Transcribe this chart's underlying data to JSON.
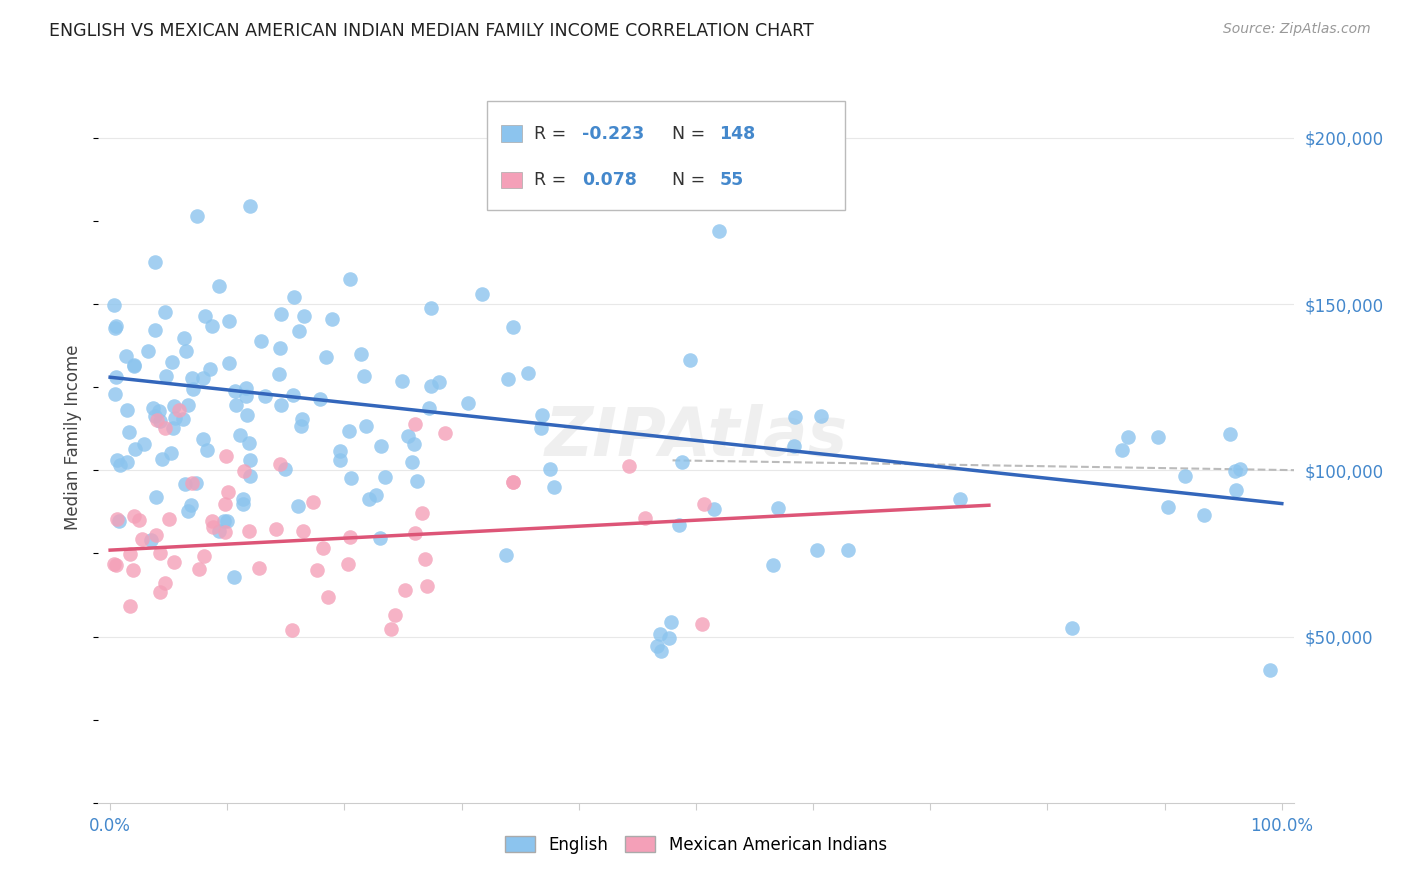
{
  "title": "ENGLISH VS MEXICAN AMERICAN INDIAN MEDIAN FAMILY INCOME CORRELATION CHART",
  "source": "Source: ZipAtlas.com",
  "ylabel": "Median Family Income",
  "ytick_labels": [
    "$50,000",
    "$100,000",
    "$150,000",
    "$200,000"
  ],
  "ytick_values": [
    50000,
    100000,
    150000,
    200000
  ],
  "ylim": [
    0,
    220000
  ],
  "watermark": "ZIPAtlas",
  "legend_english_R": "-0.223",
  "legend_english_N": "148",
  "legend_mexican_R": "0.078",
  "legend_mexican_N": "55",
  "color_english": "#8CC4EE",
  "color_mexican": "#F4A0B8",
  "color_blue_text": "#4488CC",
  "color_trendline_english": "#3366BB",
  "color_trendline_mexican": "#DD5577",
  "color_trendline_ci": "#BBBBBB",
  "color_grid": "#E8E8E8",
  "color_title": "#222222",
  "color_source": "#999999",
  "color_ylabel": "#444444",
  "color_xtick": "#4488CC",
  "color_ytick_right": "#4488CC"
}
